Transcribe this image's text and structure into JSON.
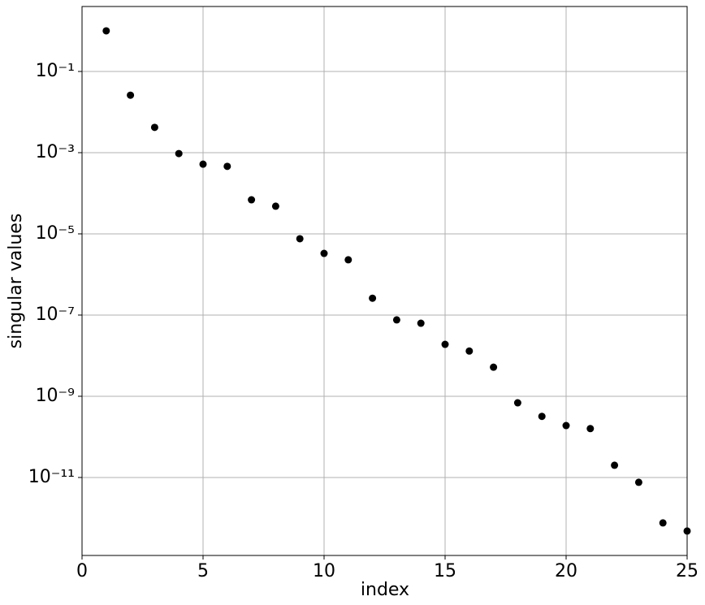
{
  "chart_data": {
    "type": "scatter",
    "xlabel": "index",
    "ylabel": "singular values",
    "x": [
      1,
      2,
      3,
      4,
      5,
      6,
      7,
      8,
      9,
      10,
      11,
      12,
      13,
      14,
      15,
      16,
      17,
      18,
      19,
      20,
      21,
      22,
      23,
      24,
      25
    ],
    "values": [
      1.0,
      0.026,
      0.0042,
      0.00095,
      0.00052,
      0.00046,
      6.9e-05,
      4.8e-05,
      7.6e-06,
      3.3e-06,
      2.3e-06,
      2.6e-07,
      7.6e-08,
      6.3e-08,
      1.9e-08,
      1.3e-08,
      5.2e-09,
      6.9e-10,
      3.2e-10,
      1.9e-10,
      1.6e-10,
      2e-11,
      7.6e-12,
      7.6e-13,
      4.8e-13
    ],
    "color": "#000000",
    "xlim": [
      0,
      25
    ],
    "xticks": [
      0,
      5,
      10,
      15,
      20,
      25
    ],
    "ylim": [
      1.2e-13,
      3.98
    ],
    "yscale": "log",
    "yticks": [
      {
        "value": 0.1,
        "label": "10⁻¹"
      },
      {
        "value": 0.001,
        "label": "10⁻³"
      },
      {
        "value": 1e-05,
        "label": "10⁻⁵"
      },
      {
        "value": 1e-07,
        "label": "10⁻⁷"
      },
      {
        "value": 1e-09,
        "label": "10⁻⁹"
      },
      {
        "value": 1e-11,
        "label": "10⁻¹¹"
      }
    ],
    "grid": true
  }
}
